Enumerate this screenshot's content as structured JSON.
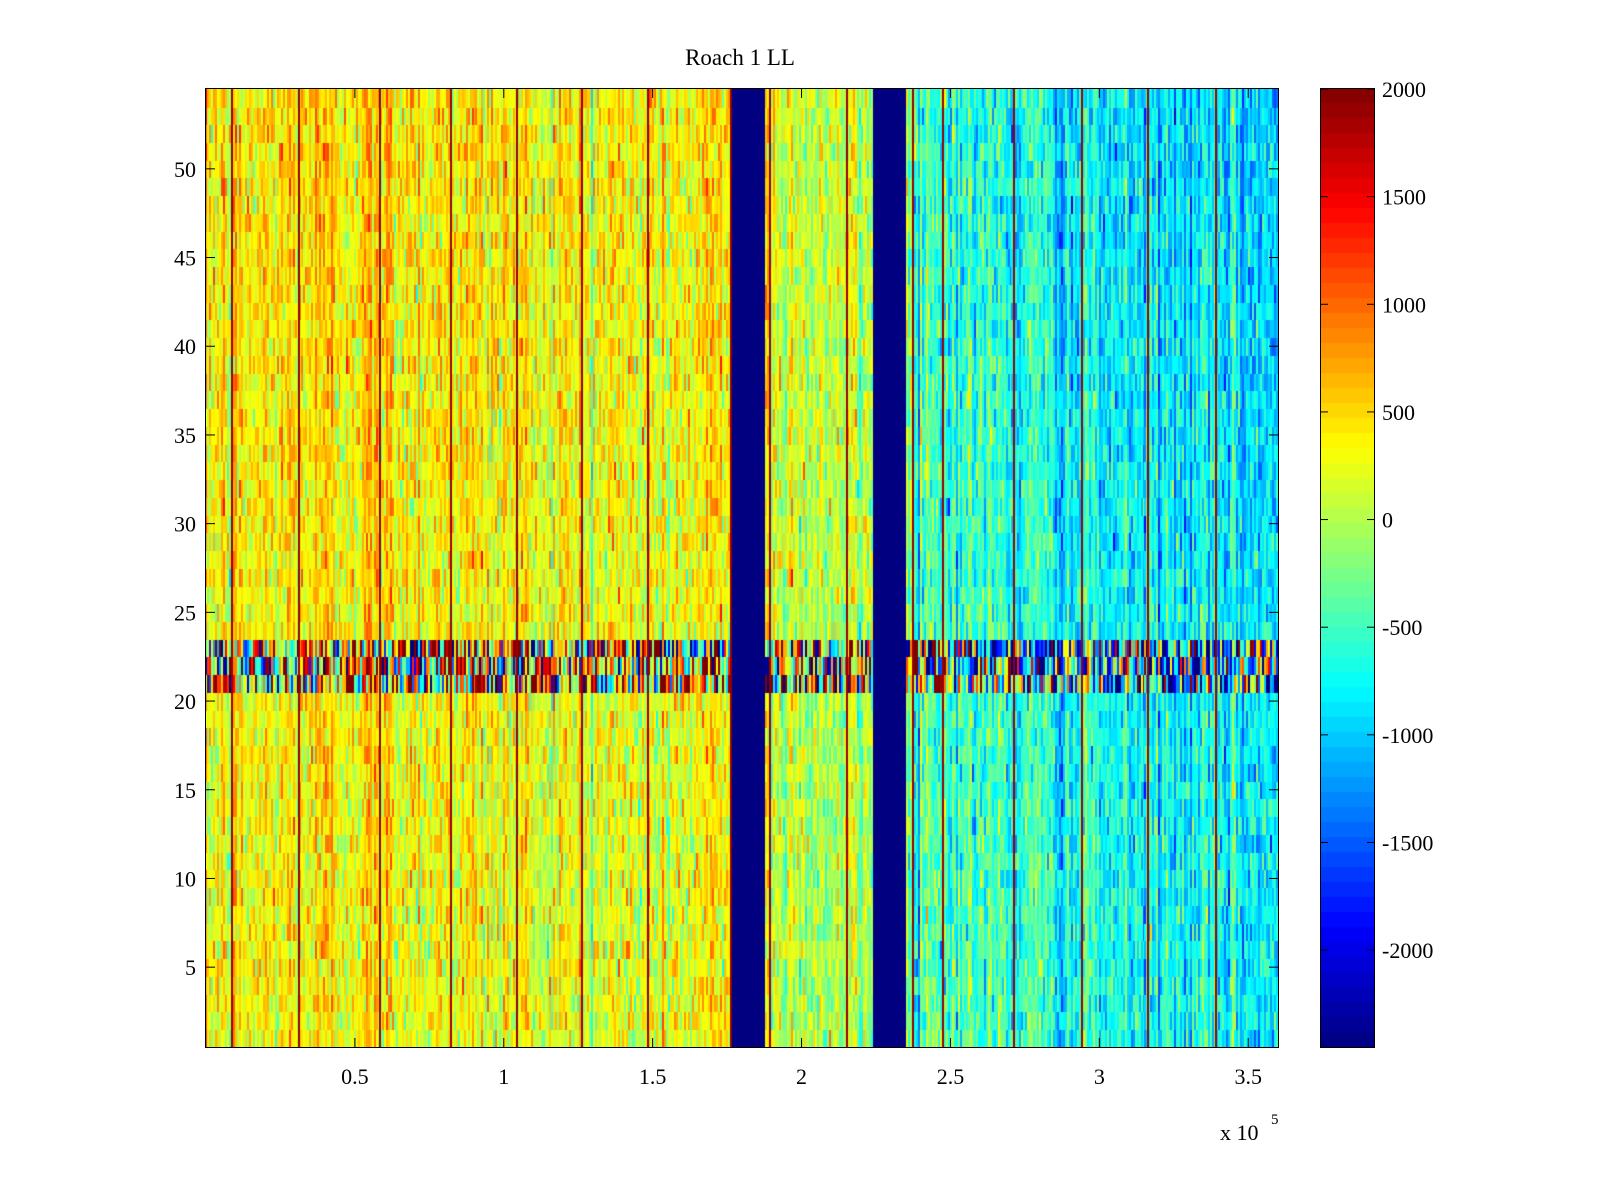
{
  "chart_data": {
    "type": "heatmap",
    "title": "Roach 1 LL",
    "xlabel": "",
    "ylabel": "",
    "x_range": [
      0,
      360000
    ],
    "y_range": [
      0.5,
      54.5
    ],
    "x_ticks": [
      50000,
      100000,
      150000,
      200000,
      250000,
      300000,
      350000
    ],
    "x_tick_labels": [
      "0.5",
      "1",
      "1.5",
      "2",
      "2.5",
      "3",
      "3.5"
    ],
    "x_exponent_label": "x 10",
    "x_exponent_power": "5",
    "y_ticks": [
      5,
      10,
      15,
      20,
      25,
      30,
      35,
      40,
      45,
      50
    ],
    "y_tick_labels": [
      "5",
      "10",
      "15",
      "20",
      "25",
      "30",
      "35",
      "40",
      "45",
      "50"
    ],
    "colorbar": {
      "colormap": "jet",
      "range": [
        -2450,
        2000
      ],
      "ticks": [
        2000,
        1500,
        1000,
        500,
        0,
        -500,
        -1000,
        -1500,
        -2000
      ],
      "tick_labels": [
        "2000",
        "1500",
        "1000",
        "500",
        "0",
        "-500",
        "-1000",
        "-1500",
        "-2000"
      ]
    },
    "grid": false,
    "features": {
      "baseline_by_x": [
        {
          "x": 0,
          "value": 300
        },
        {
          "x": 50000,
          "value": 450
        },
        {
          "x": 100000,
          "value": 320
        },
        {
          "x": 150000,
          "value": 250
        },
        {
          "x": 175000,
          "value": 350
        },
        {
          "x": 200000,
          "value": 100
        },
        {
          "x": 230000,
          "value": -100
        },
        {
          "x": 250000,
          "value": -500
        },
        {
          "x": 300000,
          "value": -800
        },
        {
          "x": 360000,
          "value": -900
        }
      ],
      "dropout_bands": [
        {
          "x_start": 177000,
          "x_end": 188000,
          "value": -2450
        },
        {
          "x_start": 224000,
          "x_end": 235000,
          "value": -2450
        }
      ],
      "vertical_spike_lines_x": [
        8500,
        31000,
        58000,
        82000,
        104000,
        126000,
        148000,
        176000,
        189000,
        215000,
        237000,
        247000,
        271000,
        294000,
        316000,
        339000
      ],
      "vertical_spike_value": 1900,
      "noisy_rows": {
        "y_start": 21,
        "y_end": 23,
        "amplitude": 1600
      }
    }
  }
}
